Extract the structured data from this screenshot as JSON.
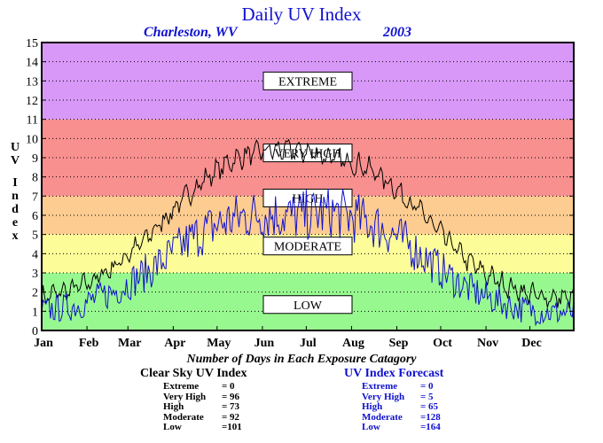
{
  "title": "Daily UV Index",
  "location": "Charleston, WV",
  "year": "2003",
  "colors": {
    "extreme": "#d898f8",
    "very_high": "#f89090",
    "high": "#fccc90",
    "moderate": "#fcfc98",
    "low": "#98f890",
    "clear_sky_line": "#000000",
    "forecast_line": "#1010d0"
  },
  "chart_data": {
    "type": "line",
    "title": "Daily UV Index",
    "subtitle": "Charleston, WV   2003",
    "ylabel": "UV Index",
    "xlabel": "",
    "ylim": [
      0,
      15
    ],
    "yticks": [
      0,
      1,
      2,
      3,
      4,
      5,
      6,
      7,
      8,
      9,
      10,
      11,
      12,
      13,
      14,
      15
    ],
    "grid": "horizontal dotted",
    "months": [
      "Jan",
      "Feb",
      "Mar",
      "Apr",
      "May",
      "Jun",
      "Jul",
      "Aug",
      "Sep",
      "Oct",
      "Nov",
      "Dec"
    ],
    "zones": [
      {
        "label": "LOW",
        "from": 0,
        "to": 3
      },
      {
        "label": "MODERATE",
        "from": 3,
        "to": 5
      },
      {
        "label": "HIGH",
        "from": 5,
        "to": 7
      },
      {
        "label": "VERY HIGH",
        "from": 7,
        "to": 11
      },
      {
        "label": "EXTREME",
        "from": 11,
        "to": 15
      }
    ],
    "series": [
      {
        "key": "clear_sky",
        "color": "#000000",
        "x_day": [
          1,
          10,
          20,
          31,
          40,
          50,
          59,
          70,
          80,
          90,
          100,
          110,
          120,
          130,
          140,
          150,
          160,
          170,
          180,
          190,
          200,
          210,
          220,
          230,
          240,
          250,
          260,
          270,
          280,
          290,
          300,
          310,
          320,
          330,
          340,
          350,
          365
        ],
        "values": [
          1.7,
          1.9,
          2.1,
          2.4,
          2.8,
          3.3,
          3.9,
          4.6,
          5.4,
          6.2,
          7.0,
          7.7,
          8.3,
          8.8,
          9.1,
          9.3,
          9.4,
          9.4,
          9.3,
          9.2,
          9.0,
          8.8,
          8.6,
          8.2,
          7.6,
          6.9,
          6.2,
          5.4,
          4.6,
          3.8,
          3.2,
          2.7,
          2.3,
          2.0,
          1.8,
          1.7,
          1.7
        ],
        "amplitude": 0.7
      },
      {
        "key": "forecast",
        "color": "#1010d0",
        "x_day": [
          1,
          10,
          20,
          31,
          40,
          50,
          59,
          70,
          80,
          90,
          100,
          110,
          120,
          130,
          140,
          150,
          160,
          170,
          180,
          190,
          200,
          210,
          220,
          230,
          240,
          250,
          260,
          270,
          280,
          290,
          300,
          310,
          320,
          330,
          340,
          350,
          365
        ],
        "values": [
          1.1,
          1.2,
          1.3,
          1.5,
          1.8,
          2.1,
          2.5,
          3.0,
          3.5,
          4.1,
          4.7,
          5.2,
          5.6,
          5.9,
          6.1,
          6.2,
          6.2,
          6.1,
          6.1,
          6.2,
          6.3,
          6.1,
          5.9,
          5.6,
          5.2,
          4.7,
          4.1,
          3.5,
          2.9,
          2.4,
          2.0,
          1.7,
          1.4,
          1.2,
          1.1,
          1.0,
          1.0
        ],
        "amplitude": 2.0
      }
    ]
  },
  "stats": {
    "heading": "Number of Days in Each Exposure Catagory",
    "clear_sky": {
      "title": "Clear Sky UV Index",
      "rows": [
        {
          "label": "Extreme",
          "value": "= 0"
        },
        {
          "label": "Very High",
          "value": "= 96"
        },
        {
          "label": "High",
          "value": "= 73"
        },
        {
          "label": "Moderate",
          "value": "= 92"
        },
        {
          "label": "Low",
          "value": "=101"
        }
      ]
    },
    "forecast": {
      "title": "UV Index Forecast",
      "rows": [
        {
          "label": "Extreme",
          "value": "= 0"
        },
        {
          "label": "Very High",
          "value": "= 5"
        },
        {
          "label": "High",
          "value": "= 65"
        },
        {
          "label": "Moderate",
          "value": "=128"
        },
        {
          "label": "Low",
          "value": "=164"
        }
      ]
    }
  }
}
